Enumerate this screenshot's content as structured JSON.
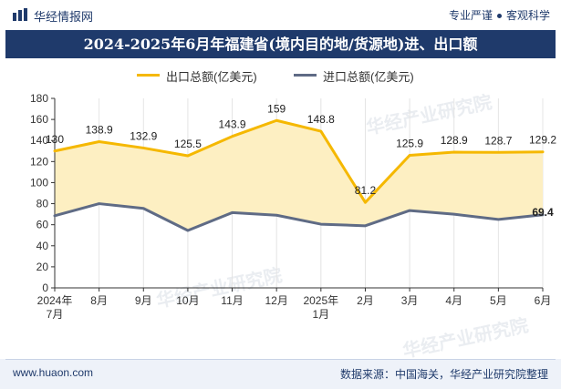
{
  "header": {
    "logo_text": "华经情报网",
    "slogan_left": "专业严谨",
    "slogan_right": "客观科学"
  },
  "footer": {
    "website": "www.huaon.com",
    "source": "数据来源：中国海关，华经产业研究院整理"
  },
  "watermark": "华经产业研究院",
  "colors": {
    "brand": "#1f3a6b",
    "export_line": "#f5b800",
    "import_line": "#5f6b85",
    "area_fill": "#fdefc2"
  },
  "chart_data": {
    "type": "line",
    "title": "2024-2025年6月年福建省(境内目的地/货源地)进、出口额",
    "xlabel": "",
    "ylabel": "",
    "categories": [
      "2024年\n7月",
      "8月",
      "9月",
      "10月",
      "11月",
      "12月",
      "2025年\n1月",
      "2月",
      "3月",
      "4月",
      "5月",
      "6月"
    ],
    "ylim": [
      0,
      180
    ],
    "yticks": [
      0,
      20,
      40,
      60,
      80,
      100,
      120,
      140,
      160,
      180
    ],
    "grid": "vertical",
    "legend": "top-center",
    "series": [
      {
        "name": "出口总额(亿美元)",
        "values": [
          130,
          138.9,
          132.9,
          125.5,
          143.9,
          159,
          148.8,
          81.2,
          125.9,
          128.9,
          128.7,
          129.2
        ],
        "labels": [
          "130",
          "138.9",
          "132.9",
          "125.5",
          "143.9",
          "159",
          "148.8",
          "81.2",
          "125.9",
          "128.9",
          "128.7",
          "129.2"
        ]
      },
      {
        "name": "进口总额(亿美元)",
        "values": [
          68.5,
          80,
          75.5,
          54.5,
          71.5,
          69,
          60.5,
          59,
          73.5,
          70,
          65,
          69.4
        ],
        "labels": [
          "",
          "",
          "",
          "",
          "",
          "",
          "",
          "",
          "",
          "",
          "",
          "69.4"
        ]
      }
    ]
  }
}
